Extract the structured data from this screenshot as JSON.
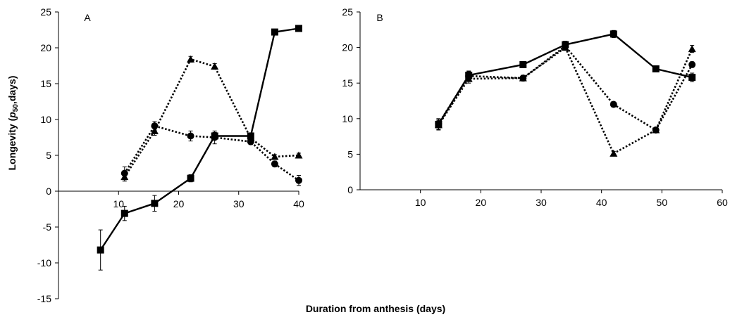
{
  "figure": {
    "ylabel": "Longevity (p50,days)",
    "ylabel_parts": {
      "before": "Longevity (",
      "italic": "p",
      "sub": "50",
      "after": ",days)"
    },
    "xlabel": "Duration from anthesis (days)"
  },
  "chart_data": [
    {
      "type": "line",
      "panel": "A",
      "xlim": [
        0,
        40
      ],
      "ylim": [
        -15,
        25
      ],
      "xticks": [
        10,
        20,
        30,
        40
      ],
      "yticks": [
        -15,
        -10,
        -5,
        0,
        5,
        10,
        15,
        20,
        25
      ],
      "grid": false,
      "legend": "none",
      "series": [
        {
          "marker": "square",
          "line": "solid",
          "x": [
            7,
            11,
            16,
            22,
            26,
            32,
            36,
            40
          ],
          "y": [
            -8.2,
            -3.1,
            -1.7,
            1.8,
            7.7,
            7.7,
            22.2,
            22.7
          ],
          "err": [
            2.8,
            1.0,
            1.1,
            0.5,
            0.5,
            0.3,
            0.3,
            0.3
          ]
        },
        {
          "marker": "triangle",
          "line": "dotted",
          "x": [
            11,
            16,
            22,
            26,
            32,
            36,
            40
          ],
          "y": [
            2.0,
            8.4,
            18.4,
            17.4,
            7.4,
            4.8,
            5.0
          ],
          "err": [
            0.6,
            0.6,
            0.4,
            0.4,
            0.3,
            0.3,
            0.3
          ]
        },
        {
          "marker": "circle",
          "line": "dotted",
          "x": [
            11,
            16,
            22,
            26,
            32,
            36,
            40
          ],
          "y": [
            2.5,
            9.1,
            7.7,
            7.5,
            6.9,
            3.8,
            1.5
          ],
          "err": [
            0.9,
            0.6,
            0.7,
            0.9,
            0.4,
            0.4,
            0.7
          ]
        }
      ]
    },
    {
      "type": "line",
      "panel": "B",
      "xlim": [
        0,
        60
      ],
      "ylim": [
        0,
        25
      ],
      "xticks": [
        10,
        20,
        30,
        40,
        50,
        60
      ],
      "yticks": [
        0,
        5,
        10,
        15,
        20,
        25
      ],
      "grid": false,
      "legend": "none",
      "series": [
        {
          "marker": "square",
          "line": "solid",
          "x": [
            13,
            18,
            27,
            34,
            42,
            49,
            55
          ],
          "y": [
            9.2,
            16.1,
            17.6,
            20.4,
            21.9,
            17.0,
            15.8
          ],
          "err": [
            0.8,
            0.6,
            0.4,
            0.5,
            0.5,
            0.3,
            0.6
          ]
        },
        {
          "marker": "triangle",
          "line": "dotted",
          "x": [
            13,
            18,
            27,
            34,
            42,
            49,
            55
          ],
          "y": [
            9.1,
            15.6,
            15.7,
            20.0,
            5.1,
            8.4,
            19.8
          ],
          "err": [
            0.6,
            0.6,
            0.4,
            0.4,
            0.3,
            0.3,
            0.5
          ]
        },
        {
          "marker": "circle",
          "line": "dotted",
          "x": [
            13,
            18,
            27,
            34,
            42,
            49,
            55
          ],
          "y": [
            9.3,
            16.0,
            15.7,
            20.2,
            12.0,
            8.4,
            17.6
          ],
          "err": [
            0.6,
            0.6,
            0.4,
            0.4,
            0.3,
            0.4,
            0.4
          ]
        }
      ]
    }
  ]
}
